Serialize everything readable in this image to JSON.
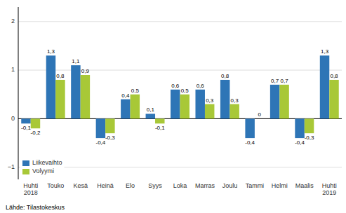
{
  "chart_data": {
    "type": "bar",
    "categories": [
      "Huhti\n2018",
      "Touko",
      "Kesä",
      "Heinä",
      "Elo",
      "Syys",
      "Loka",
      "Marras",
      "Joulu",
      "Tammi",
      "Helmi",
      "Maalis",
      "Huhti\n2019"
    ],
    "series": [
      {
        "name": "Liikevaihto",
        "color": "#2E75B6",
        "values": [
          -0.1,
          1.3,
          1.1,
          -0.4,
          0.4,
          0.1,
          0.6,
          0.6,
          0.8,
          -0.4,
          0.7,
          -0.4,
          1.3
        ],
        "value_labels": [
          "-0,1",
          "1,3",
          "1,1",
          "-0,4",
          "0,4",
          "0,1",
          "0,6",
          "0,6",
          "0,8",
          "-0,4",
          "0,7",
          "-0,4",
          "1,3"
        ]
      },
      {
        "name": "Volyymi",
        "color": "#A8C837",
        "values": [
          -0.2,
          0.8,
          0.9,
          -0.3,
          0.5,
          -0.1,
          0.5,
          0.3,
          0.3,
          0.0,
          0.7,
          -0.3,
          0.8
        ],
        "value_labels": [
          "-0,2",
          "0,8",
          "0,9",
          "-0,3",
          "0,5",
          "-0,1",
          "0,5",
          "0,3",
          "0,3",
          "0",
          "0,7",
          "-0,3",
          "0,8"
        ]
      }
    ],
    "ylim": [
      -1.25,
      2.3
    ],
    "yticks": [
      -1,
      0,
      1,
      2
    ],
    "grid": true,
    "legend": "lower left",
    "data_labels": true,
    "annotations": [
      "Lähde: Tilastokeskus"
    ]
  }
}
